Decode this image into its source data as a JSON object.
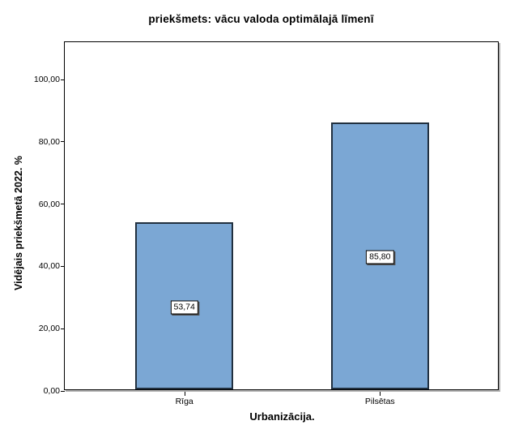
{
  "chart_data": {
    "type": "bar",
    "title": "priekšmets: vācu valoda optimālajā līmenī",
    "xlabel": "Urbanizācija.",
    "ylabel": "Vidējais priekšmetā 2022. %",
    "categories": [
      "Rīga",
      "Pilsētas"
    ],
    "values": [
      53.74,
      85.8
    ],
    "value_labels": [
      "53,74",
      "85,80"
    ],
    "y_ticks": [
      {
        "value": 0,
        "label": "0,00"
      },
      {
        "value": 20,
        "label": "20,00"
      },
      {
        "value": 40,
        "label": "40,00"
      },
      {
        "value": 60,
        "label": "60,00"
      },
      {
        "value": 80,
        "label": "80,00"
      },
      {
        "value": 100,
        "label": "100,00"
      }
    ],
    "ylim": [
      0,
      112
    ],
    "grid": false,
    "legend": "none",
    "bar_center_fracs": [
      0.275,
      0.725
    ],
    "bar_width_frac": 0.225,
    "colors": {
      "bar_fill": "#7BA7D4",
      "bar_border": "#21303F",
      "axis_line": "#000000",
      "frame_shadow": "#B3B3B3",
      "label_box_bg": "#FFFFFF",
      "label_box_border": "#000000",
      "label_box_shadow": "#4D4D4D",
      "background": "#FFFFFF",
      "text": "#000000"
    }
  }
}
